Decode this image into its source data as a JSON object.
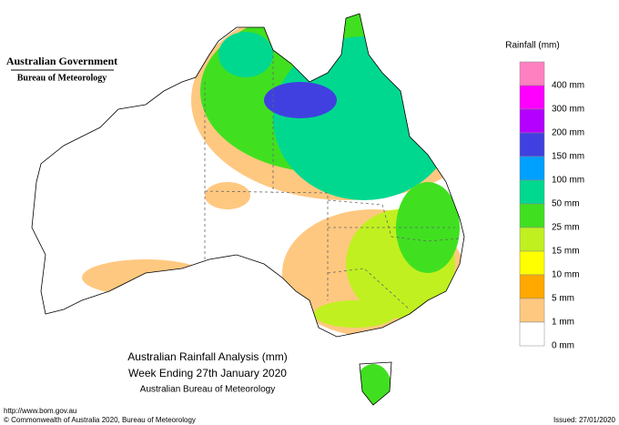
{
  "header": {
    "government": "Australian Government",
    "bureau": "Bureau of Meteorology"
  },
  "title": {
    "line1": "Australian Rainfall Analysis (mm)",
    "line2": "Week Ending 27th January 2020",
    "line3": "Australian Bureau of Meteorology"
  },
  "legend": {
    "title": "Rainfall (mm)",
    "items": [
      {
        "label": "400 mm",
        "color": "#ff80c0"
      },
      {
        "label": "300 mm",
        "color": "#ff00ff"
      },
      {
        "label": "200 mm",
        "color": "#b400ff"
      },
      {
        "label": "150 mm",
        "color": "#4040e0"
      },
      {
        "label": "100 mm",
        "color": "#00a0ff"
      },
      {
        "label": "50 mm",
        "color": "#00d890"
      },
      {
        "label": "25 mm",
        "color": "#40e020"
      },
      {
        "label": "15 mm",
        "color": "#c0f020"
      },
      {
        "label": "10 mm",
        "color": "#ffff00"
      },
      {
        "label": "5 mm",
        "color": "#ffa800"
      },
      {
        "label": "1 mm",
        "color": "#ffc880"
      },
      {
        "label": "0 mm",
        "color": "#ffffff"
      }
    ]
  },
  "footer": {
    "url": "http://www.bom.gov.au",
    "copyright": "© Commonwealth of Australia 2020, Bureau of Meteorology",
    "issued": "Issued: 27/01/2020"
  }
}
